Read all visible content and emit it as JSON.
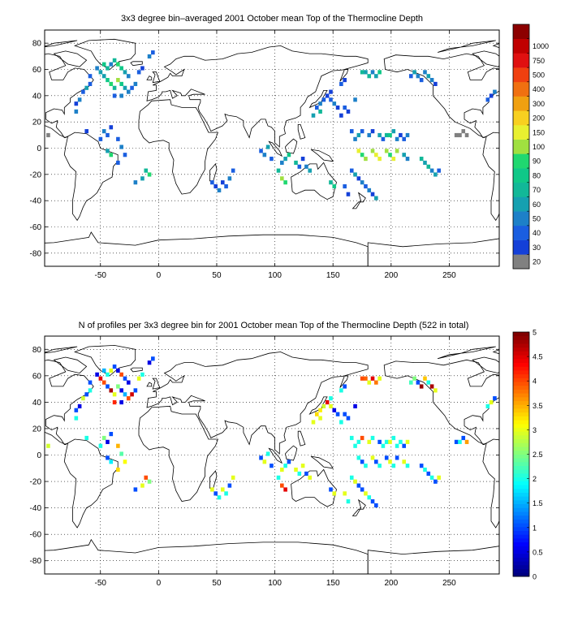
{
  "map1": {
    "title": "3x3 degree bin–averaged 2001 October mean Top of the Thermocline Depth",
    "xticks": [
      -50,
      0,
      50,
      100,
      150,
      200,
      250
    ],
    "yticks": [
      80,
      60,
      40,
      20,
      0,
      -20,
      -40,
      -60,
      -80
    ],
    "xlim": [
      -98,
      293
    ],
    "ylim": [
      -90,
      90
    ],
    "colorbar": {
      "type": "discrete",
      "labels": [
        "20",
        "30",
        "40",
        "50",
        "60",
        "70",
        "80",
        "90",
        "100",
        "150",
        "200",
        "300",
        "400",
        "500",
        "750",
        "1000"
      ],
      "colors": [
        "#808080",
        "#1440d8",
        "#1a5ee0",
        "#1d80c8",
        "#15a0b0",
        "#12b898",
        "#10c888",
        "#20d870",
        "#a0e040",
        "#e8f030",
        "#f8d020",
        "#f0a010",
        "#f07010",
        "#f04010",
        "#e01010",
        "#c00000",
        "#8c0000"
      ]
    },
    "cells": [
      [
        -95,
        10,
        0
      ],
      [
        -59,
        55,
        2
      ],
      [
        -53,
        61,
        3
      ],
      [
        -50,
        58,
        4
      ],
      [
        -47,
        64,
        6
      ],
      [
        -44,
        61,
        5
      ],
      [
        -41,
        64,
        3
      ],
      [
        -38,
        67,
        5
      ],
      [
        -35,
        64,
        7
      ],
      [
        -32,
        61,
        6
      ],
      [
        -29,
        58,
        4
      ],
      [
        -26,
        55,
        3
      ],
      [
        -47,
        55,
        4
      ],
      [
        -44,
        52,
        6
      ],
      [
        -41,
        49,
        7
      ],
      [
        -38,
        46,
        5
      ],
      [
        -35,
        52,
        8
      ],
      [
        -32,
        49,
        6
      ],
      [
        -29,
        46,
        4
      ],
      [
        -26,
        43,
        3
      ],
      [
        -23,
        46,
        2
      ],
      [
        -20,
        49,
        3
      ],
      [
        -38,
        40,
        2
      ],
      [
        -32,
        40,
        3
      ],
      [
        -65,
        43,
        2
      ],
      [
        -68,
        37,
        3
      ],
      [
        -71,
        34,
        1
      ],
      [
        -71,
        28,
        3
      ],
      [
        -62,
        46,
        4
      ],
      [
        -59,
        49,
        2
      ],
      [
        -62,
        13,
        1
      ],
      [
        -50,
        7,
        2
      ],
      [
        -47,
        13,
        3
      ],
      [
        -44,
        10,
        2
      ],
      [
        -41,
        16,
        1
      ],
      [
        -35,
        7,
        2
      ],
      [
        -32,
        1,
        3
      ],
      [
        -29,
        -5,
        2
      ],
      [
        -44,
        -2,
        4
      ],
      [
        -41,
        -5,
        7
      ],
      [
        -35,
        -11,
        2
      ],
      [
        -11,
        -17,
        5
      ],
      [
        -8,
        -20,
        7
      ],
      [
        -14,
        -23,
        4
      ],
      [
        -20,
        -26,
        3
      ],
      [
        -17,
        58,
        2
      ],
      [
        -14,
        61,
        1
      ],
      [
        -8,
        70,
        3
      ],
      [
        -5,
        73,
        2
      ],
      [
        145,
        40,
        1
      ],
      [
        148,
        37,
        2
      ],
      [
        151,
        34,
        3
      ],
      [
        154,
        31,
        1
      ],
      [
        142,
        37,
        2
      ],
      [
        139,
        34,
        3
      ],
      [
        136,
        31,
        2
      ],
      [
        157,
        25,
        1
      ],
      [
        160,
        31,
        2
      ],
      [
        163,
        28,
        1
      ],
      [
        133,
        25,
        4
      ],
      [
        139,
        28,
        5
      ],
      [
        148,
        43,
        1
      ],
      [
        157,
        49,
        2
      ],
      [
        160,
        52,
        1
      ],
      [
        169,
        37,
        3
      ],
      [
        178,
        58,
        4
      ],
      [
        181,
        55,
        5
      ],
      [
        184,
        58,
        3
      ],
      [
        187,
        55,
        4
      ],
      [
        190,
        58,
        6
      ],
      [
        175,
        58,
        5
      ],
      [
        220,
        58,
        4
      ],
      [
        223,
        55,
        3
      ],
      [
        226,
        52,
        2
      ],
      [
        229,
        58,
        3
      ],
      [
        232,
        55,
        4
      ],
      [
        235,
        52,
        3
      ],
      [
        238,
        49,
        1
      ],
      [
        217,
        55,
        2
      ],
      [
        166,
        13,
        2
      ],
      [
        169,
        7,
        3
      ],
      [
        172,
        10,
        4
      ],
      [
        175,
        13,
        2
      ],
      [
        181,
        10,
        3
      ],
      [
        184,
        13,
        1
      ],
      [
        190,
        10,
        4
      ],
      [
        193,
        7,
        2
      ],
      [
        196,
        10,
        5
      ],
      [
        199,
        10,
        6
      ],
      [
        202,
        13,
        4
      ],
      [
        205,
        7,
        3
      ],
      [
        208,
        10,
        1
      ],
      [
        211,
        7,
        2
      ],
      [
        214,
        10,
        3
      ],
      [
        172,
        -2,
        9
      ],
      [
        175,
        -5,
        7
      ],
      [
        178,
        -8,
        8
      ],
      [
        184,
        -2,
        8
      ],
      [
        187,
        -5,
        9
      ],
      [
        190,
        -8,
        9
      ],
      [
        196,
        -2,
        8
      ],
      [
        199,
        -5,
        7
      ],
      [
        202,
        -8,
        9
      ],
      [
        205,
        -2,
        8
      ],
      [
        211,
        -5,
        4
      ],
      [
        214,
        -8,
        3
      ],
      [
        166,
        -17,
        2
      ],
      [
        169,
        -20,
        4
      ],
      [
        172,
        -23,
        1
      ],
      [
        175,
        -26,
        3
      ],
      [
        178,
        -29,
        2
      ],
      [
        181,
        -32,
        3
      ],
      [
        184,
        -35,
        1
      ],
      [
        187,
        -38,
        4
      ],
      [
        160,
        -29,
        2
      ],
      [
        163,
        -35,
        1
      ],
      [
        103,
        -17,
        5
      ],
      [
        106,
        -11,
        3
      ],
      [
        109,
        -8,
        4
      ],
      [
        112,
        -5,
        6
      ],
      [
        118,
        -11,
        5
      ],
      [
        121,
        -14,
        2
      ],
      [
        124,
        -8,
        1
      ],
      [
        127,
        -14,
        3
      ],
      [
        130,
        -17,
        4
      ],
      [
        106,
        -23,
        8
      ],
      [
        109,
        -26,
        7
      ],
      [
        88,
        -2,
        2
      ],
      [
        91,
        -5,
        3
      ],
      [
        94,
        1,
        4
      ],
      [
        97,
        -8,
        2
      ],
      [
        148,
        -26,
        5
      ],
      [
        151,
        -29,
        6
      ],
      [
        226,
        -8,
        5
      ],
      [
        229,
        -11,
        4
      ],
      [
        232,
        -14,
        5
      ],
      [
        235,
        -17,
        3
      ],
      [
        238,
        -20,
        4
      ],
      [
        241,
        -17,
        2
      ],
      [
        46,
        -26,
        2
      ],
      [
        49,
        -29,
        1
      ],
      [
        52,
        -32,
        3
      ],
      [
        55,
        -26,
        1
      ],
      [
        58,
        -29,
        2
      ],
      [
        61,
        -23,
        3
      ],
      [
        64,
        -17,
        2
      ],
      [
        256,
        10,
        0
      ],
      [
        259,
        10,
        0
      ],
      [
        262,
        13,
        0
      ],
      [
        265,
        10,
        0
      ],
      [
        283,
        37,
        2
      ],
      [
        286,
        40,
        1
      ],
      [
        289,
        43,
        3
      ]
    ]
  },
  "map2": {
    "title": "N of profiles per 3x3 degree bin for 2001 October mean Top of the Thermocline Depth  (522 in total)",
    "xticks": [
      -50,
      0,
      50,
      100,
      150,
      200,
      250
    ],
    "yticks": [
      80,
      60,
      40,
      20,
      0,
      -20,
      -40,
      -60,
      -80
    ],
    "xlim": [
      -98,
      293
    ],
    "ylim": [
      -90,
      90
    ],
    "colorbar": {
      "type": "continuous",
      "min": 0,
      "max": 5,
      "ticks": [
        "0",
        "0.5",
        "1",
        "1.5",
        "2",
        "2.5",
        "3",
        "3.5",
        "4",
        "4.5",
        "5"
      ]
    },
    "cells": [
      [
        -95,
        7,
        2.9
      ],
      [
        -59,
        55,
        1
      ],
      [
        -53,
        61,
        0.5
      ],
      [
        -50,
        58,
        4.5
      ],
      [
        -47,
        64,
        1.5
      ],
      [
        -44,
        61,
        2
      ],
      [
        -41,
        64,
        3
      ],
      [
        -38,
        67,
        1
      ],
      [
        -35,
        64,
        0.5
      ],
      [
        -32,
        61,
        4
      ],
      [
        -29,
        58,
        1
      ],
      [
        -26,
        55,
        0.5
      ],
      [
        -47,
        55,
        4
      ],
      [
        -44,
        52,
        1
      ],
      [
        -41,
        49,
        4.8
      ],
      [
        -38,
        46,
        3
      ],
      [
        -35,
        52,
        2.5
      ],
      [
        -32,
        49,
        0.5
      ],
      [
        -29,
        46,
        1.5
      ],
      [
        -26,
        43,
        4
      ],
      [
        -23,
        46,
        4.6
      ],
      [
        -20,
        49,
        1
      ],
      [
        -38,
        40,
        4.2
      ],
      [
        -32,
        40,
        0.5
      ],
      [
        -65,
        43,
        2.9
      ],
      [
        -68,
        37,
        0.5
      ],
      [
        -71,
        34,
        1
      ],
      [
        -71,
        28,
        2
      ],
      [
        -62,
        46,
        1
      ],
      [
        -59,
        49,
        2
      ],
      [
        -62,
        13,
        2
      ],
      [
        -50,
        7,
        2
      ],
      [
        -47,
        13,
        2.5
      ],
      [
        -44,
        10,
        0.5
      ],
      [
        -41,
        16,
        1
      ],
      [
        -35,
        7,
        3.5
      ],
      [
        -32,
        1,
        2.3
      ],
      [
        -29,
        -5,
        3.1
      ],
      [
        -44,
        -2,
        1
      ],
      [
        -41,
        -5,
        1.8
      ],
      [
        -35,
        -11,
        3.3
      ],
      [
        -11,
        -17,
        4
      ],
      [
        -8,
        -20,
        2.5
      ],
      [
        -14,
        -23,
        3
      ],
      [
        -20,
        -26,
        1
      ],
      [
        -17,
        58,
        3
      ],
      [
        -14,
        61,
        2
      ],
      [
        -8,
        70,
        0.5
      ],
      [
        -5,
        73,
        1
      ],
      [
        145,
        40,
        4.5
      ],
      [
        148,
        37,
        3
      ],
      [
        151,
        34,
        0.5
      ],
      [
        154,
        31,
        1
      ],
      [
        142,
        37,
        2.9
      ],
      [
        139,
        34,
        3.2
      ],
      [
        136,
        31,
        3.3
      ],
      [
        157,
        25,
        2
      ],
      [
        160,
        31,
        1
      ],
      [
        163,
        28,
        1
      ],
      [
        133,
        25,
        3
      ],
      [
        139,
        28,
        3
      ],
      [
        148,
        43,
        2
      ],
      [
        157,
        49,
        2
      ],
      [
        160,
        52,
        1
      ],
      [
        169,
        37,
        0.5
      ],
      [
        178,
        58,
        3.9
      ],
      [
        181,
        55,
        3
      ],
      [
        184,
        58,
        4.5
      ],
      [
        187,
        55,
        3.8
      ],
      [
        190,
        58,
        3
      ],
      [
        175,
        58,
        4
      ],
      [
        220,
        58,
        2.5
      ],
      [
        223,
        55,
        1
      ],
      [
        226,
        52,
        4.9
      ],
      [
        229,
        58,
        3.4
      ],
      [
        232,
        55,
        2
      ],
      [
        235,
        52,
        4.8
      ],
      [
        238,
        49,
        3
      ],
      [
        217,
        55,
        2.2
      ],
      [
        166,
        13,
        2
      ],
      [
        169,
        7,
        2
      ],
      [
        172,
        10,
        2
      ],
      [
        175,
        13,
        4
      ],
      [
        181,
        10,
        3
      ],
      [
        184,
        13,
        2
      ],
      [
        190,
        10,
        1
      ],
      [
        193,
        7,
        2
      ],
      [
        196,
        10,
        2
      ],
      [
        199,
        10,
        3
      ],
      [
        202,
        13,
        2
      ],
      [
        205,
        7,
        2
      ],
      [
        208,
        10,
        2
      ],
      [
        211,
        7,
        1
      ],
      [
        214,
        10,
        3
      ],
      [
        172,
        -2,
        2
      ],
      [
        175,
        -5,
        1
      ],
      [
        178,
        -8,
        2
      ],
      [
        184,
        -2,
        3
      ],
      [
        187,
        -5,
        1
      ],
      [
        190,
        -8,
        2
      ],
      [
        196,
        -2,
        1
      ],
      [
        199,
        -5,
        3
      ],
      [
        202,
        -8,
        2
      ],
      [
        205,
        -2,
        1
      ],
      [
        211,
        -5,
        3
      ],
      [
        214,
        -8,
        2
      ],
      [
        166,
        -17,
        2
      ],
      [
        169,
        -20,
        3
      ],
      [
        172,
        -23,
        1
      ],
      [
        175,
        -26,
        1
      ],
      [
        178,
        -29,
        3
      ],
      [
        181,
        -32,
        2
      ],
      [
        184,
        -35,
        1
      ],
      [
        187,
        -38,
        1
      ],
      [
        160,
        -29,
        3
      ],
      [
        163,
        -35,
        2
      ],
      [
        103,
        -17,
        2
      ],
      [
        106,
        -11,
        3
      ],
      [
        109,
        -8,
        2
      ],
      [
        112,
        -5,
        1
      ],
      [
        118,
        -11,
        3
      ],
      [
        121,
        -14,
        2
      ],
      [
        124,
        -8,
        3
      ],
      [
        127,
        -14,
        1
      ],
      [
        130,
        -17,
        3
      ],
      [
        106,
        -23,
        4
      ],
      [
        109,
        -26,
        4.5
      ],
      [
        88,
        -2,
        1
      ],
      [
        91,
        -5,
        3
      ],
      [
        94,
        1,
        2
      ],
      [
        97,
        -8,
        1
      ],
      [
        148,
        -26,
        1
      ],
      [
        151,
        -29,
        3
      ],
      [
        226,
        -8,
        1
      ],
      [
        229,
        -11,
        2
      ],
      [
        232,
        -14,
        1
      ],
      [
        235,
        -17,
        2
      ],
      [
        238,
        -20,
        1
      ],
      [
        241,
        -17,
        3
      ],
      [
        46,
        -26,
        3
      ],
      [
        49,
        -29,
        1
      ],
      [
        52,
        -32,
        2
      ],
      [
        55,
        -26,
        3
      ],
      [
        58,
        -29,
        2
      ],
      [
        61,
        -23,
        1
      ],
      [
        64,
        -17,
        3
      ],
      [
        256,
        10,
        1
      ],
      [
        259,
        10,
        2
      ],
      [
        262,
        13,
        1
      ],
      [
        265,
        10,
        3.6
      ],
      [
        283,
        37,
        2
      ],
      [
        286,
        40,
        3
      ],
      [
        289,
        43,
        1
      ]
    ]
  }
}
